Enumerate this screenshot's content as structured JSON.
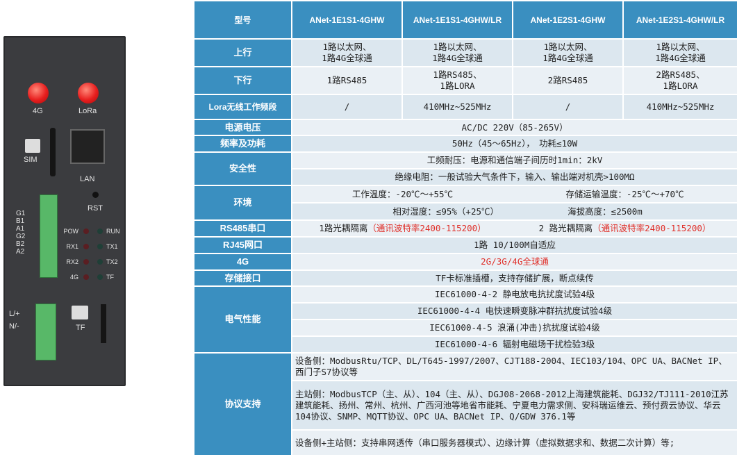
{
  "device": {
    "antenna_labels": [
      "4G",
      "LoRa"
    ],
    "sim": "SIM",
    "lan": "LAN",
    "rst": "RST",
    "rs485_pins": [
      "G1",
      "B1",
      "A1",
      "G2",
      "B2",
      "A2"
    ],
    "leds_left": [
      "POW",
      "RX1",
      "RX2",
      "4G"
    ],
    "leds_right": [
      "RUN",
      "TX1",
      "TX2",
      "TF"
    ],
    "power_pins": [
      "L/+",
      "N/-"
    ],
    "tf": "TF"
  },
  "table": {
    "header": [
      "型号",
      "ANet-1E1S1-4GHW",
      "ANet-1E1S1-4GHW/LR",
      "ANet-1E2S1-4GHW",
      "ANet-1E2S1-4GHW/LR"
    ],
    "uplink": {
      "label": "上行",
      "values": [
        "1路以太网、\n1路4G全球通",
        "1路以太网、\n1路4G全球通",
        "1路以太网、\n1路4G全球通",
        "1路以太网、\n1路4G全球通"
      ]
    },
    "downlink": {
      "label": "下行",
      "values": [
        "1路RS485",
        "1路RS485、\n1路LORA",
        "2路RS485",
        "2路RS485、\n1路LORA"
      ]
    },
    "lora": {
      "label": "Lora无线工作频段",
      "values": [
        "/",
        "410MHz~525MHz",
        "/",
        "410MHz~525MHz"
      ]
    },
    "power": {
      "label": "电源电压",
      "value": "AC/DC 220V（85-265V）"
    },
    "freq": {
      "label": "频率及功耗",
      "value": "50Hz（45～65Hz），　功耗≤10W"
    },
    "safety": {
      "label": "安全性",
      "values": [
        "工频耐压：电源和通信端子间历时1min：2kV",
        "绝缘电阻：一般试验大气条件下，输入、输出端对机壳>100MΩ"
      ]
    },
    "env": {
      "label": "环境",
      "values": [
        "工作温度：-20℃～+55℃",
        "存储运输温度：-25℃～+70℃",
        "相对湿度：≤95%（+25℃）",
        "海拔高度：≤2500m"
      ]
    },
    "rs485": {
      "label": "RS485串口",
      "values": [
        {
          "text": "1路光耦隔离",
          "note": "（通讯波特率2400-115200）"
        },
        {
          "text": "2 路光耦隔离",
          "note": "（通讯波特率2400-115200）"
        }
      ]
    },
    "rj45": {
      "label": "RJ45网口",
      "value": "1路 10/100M自适应"
    },
    "g4": {
      "label": "4G",
      "value": "2G/3G/4G全球通"
    },
    "storage": {
      "label": "存储接口",
      "value": "TF卡标准插槽，支持存储扩展，断点续传"
    },
    "emc": {
      "label": "电气性能",
      "values": [
        "IEC61000-4-2 静电放电抗扰度试验4级",
        "IEC61000-4-4 电快速瞬变脉冲群抗扰度试验4级",
        "IEC61000-4-5 浪涌(冲击)抗扰度试验4级",
        "IEC61000-4-6 辐射电磁场干扰检验3级"
      ]
    },
    "protocol": {
      "label": "协议支持",
      "values": [
        "设备侧：ModbusRtu/TCP、DL/T645-1997/2007、CJT188-2004、IEC103/104、OPC UA、BACNet IP、西门子S7协议等",
        "主站侧：ModbusTCP（主、从）、104（主、从）、DGJ08-2068-2012上海建筑能耗、DGJ32/TJ111-2010江苏建筑能耗、扬州、常州、杭州、广西河池等地省市能耗、宁夏电力需求侧、安科瑞运维云、预付费云协议、华云104协议、SNMP、MQTT协议、OPC UA、BACNet IP、Q/GDW 376.1等",
        "设备侧+主站侧：支持串网透传（串口服务器模式）、边缘计算（虚拟数据求和、数据二次计算）等;"
      ]
    }
  },
  "colors": {
    "header": "#3a8fc0",
    "cell": "#dce7ef",
    "highlight": "#e0302a"
  }
}
